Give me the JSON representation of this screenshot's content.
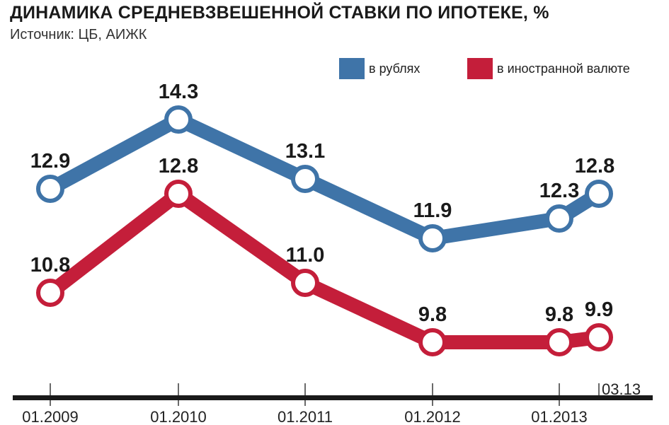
{
  "header": {
    "title": "ДИНАМИКА СРЕДНЕВЗВЕШЕННОЙ СТАВКИ ПО ИПОТЕКЕ, %",
    "source": "Источник: ЦБ, АИЖК"
  },
  "chart_data": {
    "type": "line",
    "title": "ДИНАМИКА СРЕДНЕВЗВЕШЕННОЙ СТАВКИ ПО ИПОТЕКЕ, %",
    "subtitle": "Источник: ЦБ, АИЖК",
    "xlabel": "",
    "ylabel": "",
    "x": [
      "01.2009",
      "01.2010",
      "01.2011",
      "01.2012",
      "01.2013",
      "03.13"
    ],
    "x_tick_labels": [
      "01.2009",
      "01.2010",
      "01.2011",
      "01.2012",
      "01.2013"
    ],
    "end_label": "03.13",
    "ylim": [
      9,
      15
    ],
    "grid": false,
    "legend_position": "top-right",
    "series": [
      {
        "name": "в рублях",
        "color": "#3f74a8",
        "values": [
          12.9,
          14.3,
          13.1,
          11.9,
          12.3,
          12.8
        ]
      },
      {
        "name": "в иностранной валюте",
        "color": "#c41e3a",
        "values": [
          10.8,
          12.8,
          11.0,
          9.8,
          9.8,
          9.9
        ]
      }
    ]
  }
}
